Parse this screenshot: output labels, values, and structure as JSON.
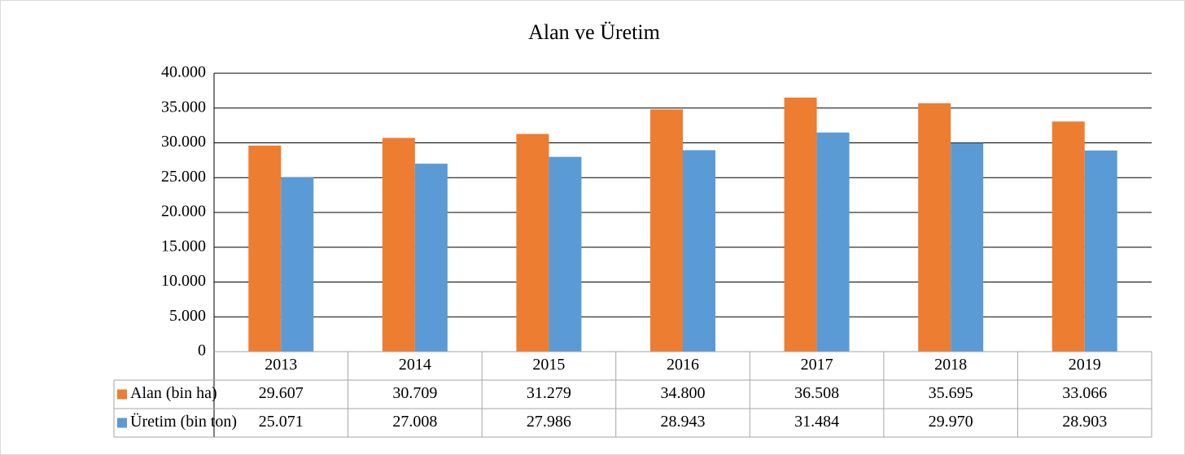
{
  "chart_data": {
    "type": "bar",
    "title": "Alan ve Üretim",
    "categories": [
      "2013",
      "2014",
      "2015",
      "2016",
      "2017",
      "2018",
      "2019"
    ],
    "series": [
      {
        "name": "Alan (bin ha)",
        "color": "#ed7d31",
        "values": [
          29607,
          30709,
          31279,
          34800,
          36508,
          35695,
          33066
        ],
        "value_labels": [
          "29.607",
          "30.709",
          "31.279",
          "34.800",
          "36.508",
          "35.695",
          "33.066"
        ]
      },
      {
        "name": "Üretim (bin ton)",
        "color": "#5b9bd5",
        "values": [
          25071,
          27008,
          27986,
          28943,
          31484,
          29970,
          28903
        ],
        "value_labels": [
          "25.071",
          "27.008",
          "27.986",
          "28.943",
          "31.484",
          "29.970",
          "28.903"
        ]
      }
    ],
    "ylim": [
      0,
      40000
    ],
    "yticks": [
      0,
      {
        "value": 5000,
        "label": "5.000"
      },
      {
        "value": 10000,
        "label": "10.000"
      },
      {
        "value": 15000,
        "label": "15.000"
      },
      {
        "value": 20000,
        "label": "20.000"
      },
      {
        "value": 25000,
        "label": "25.000"
      },
      {
        "value": 30000,
        "label": "30.000"
      },
      {
        "value": 35000,
        "label": "35.000"
      },
      {
        "value": 40000,
        "label": "40.000"
      }
    ],
    "grid": true
  }
}
